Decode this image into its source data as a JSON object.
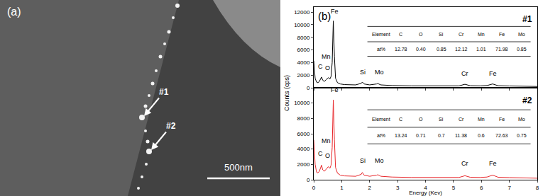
{
  "micrograph": {
    "panel_label": "(a)",
    "markers": [
      "#1",
      "#2"
    ],
    "scale_bar": "500nm"
  },
  "chart_data": [
    {
      "type": "line",
      "panel_label": "(b)",
      "tag": "#1",
      "y_label": "Counts (cps)",
      "color": "#000000",
      "tick_labels": "y",
      "xlim": [
        0,
        8
      ],
      "xticks": [
        0,
        1,
        2,
        3,
        4,
        5,
        6,
        7,
        8
      ],
      "ylim": [
        0,
        12800
      ],
      "yticks": [
        0,
        2000,
        4000,
        6000,
        8000,
        10000,
        12000
      ],
      "x": [
        0,
        0.05,
        0.1,
        0.15,
        0.2,
        0.25,
        0.28,
        0.32,
        0.38,
        0.45,
        0.52,
        0.58,
        0.62,
        0.66,
        0.7,
        0.74,
        0.78,
        0.85,
        0.95,
        1.1,
        1.3,
        1.5,
        1.7,
        1.74,
        1.8,
        2.0,
        2.25,
        2.3,
        2.4,
        2.8,
        3.5,
        4.5,
        5.2,
        5.41,
        5.6,
        5.95,
        6.2,
        6.4,
        6.6,
        7.0,
        7.5,
        8.0
      ],
      "values": [
        4300,
        1500,
        900,
        800,
        1000,
        1400,
        1700,
        1200,
        1000,
        1300,
        1600,
        1400,
        1800,
        4000,
        10600,
        5000,
        1500,
        800,
        600,
        500,
        450,
        450,
        700,
        900,
        600,
        450,
        600,
        650,
        450,
        350,
        300,
        280,
        300,
        550,
        320,
        300,
        350,
        600,
        320,
        280,
        250,
        200
      ],
      "peak_labels": [
        {
          "text": "Fe",
          "x": 0.75,
          "y": 11300
        },
        {
          "text": "Mn",
          "x": 0.45,
          "y": 4200
        },
        {
          "text": "C",
          "x": 0.25,
          "y": 2600
        },
        {
          "text": "O",
          "x": 0.5,
          "y": 2400
        },
        {
          "text": "Si",
          "x": 1.74,
          "y": 1700
        },
        {
          "text": "Mo",
          "x": 2.35,
          "y": 1700
        },
        {
          "text": "Cr",
          "x": 5.41,
          "y": 1500
        },
        {
          "text": "Fe",
          "x": 6.4,
          "y": 1500
        }
      ],
      "table": {
        "header": [
          "Element",
          "C",
          "O",
          "Si",
          "Cr",
          "Mn",
          "Fe",
          "Mo"
        ],
        "row": [
          "at%",
          "12.78",
          "0.40",
          "0.85",
          "12.12",
          "1.01",
          "71.98",
          "0.85"
        ]
      }
    },
    {
      "type": "line",
      "tag": "#2",
      "x_label": "Energy (Kev)",
      "color": "#e8262a",
      "xlim": [
        0,
        8
      ],
      "xticks": [
        0,
        1,
        2,
        3,
        4,
        5,
        6,
        7,
        8
      ],
      "ylim": [
        0,
        12000
      ],
      "yticks": [
        0,
        2000,
        4000,
        6000,
        8000,
        10000
      ],
      "x": [
        0,
        0.05,
        0.1,
        0.15,
        0.2,
        0.25,
        0.28,
        0.32,
        0.38,
        0.45,
        0.52,
        0.58,
        0.62,
        0.66,
        0.7,
        0.74,
        0.78,
        0.85,
        0.95,
        1.1,
        1.3,
        1.5,
        1.7,
        1.74,
        1.8,
        2.0,
        2.25,
        2.3,
        2.4,
        2.8,
        3.5,
        4.5,
        5.2,
        5.41,
        5.6,
        5.95,
        6.2,
        6.4,
        6.6,
        7.0,
        7.5,
        8.0
      ],
      "values": [
        5200,
        2000,
        1000,
        900,
        1100,
        1500,
        1900,
        1300,
        1100,
        1400,
        1700,
        1500,
        1900,
        4200,
        10400,
        5200,
        1600,
        850,
        600,
        500,
        450,
        450,
        700,
        950,
        600,
        450,
        600,
        650,
        450,
        350,
        300,
        280,
        300,
        520,
        320,
        300,
        350,
        600,
        320,
        280,
        250,
        200
      ],
      "peak_labels": [
        {
          "text": "Fe",
          "x": 0.75,
          "y": 11100
        },
        {
          "text": "Mn",
          "x": 0.45,
          "y": 4400
        },
        {
          "text": "C",
          "x": 0.25,
          "y": 2800
        },
        {
          "text": "O",
          "x": 0.5,
          "y": 2500
        },
        {
          "text": "Si",
          "x": 1.74,
          "y": 1800
        },
        {
          "text": "Mo",
          "x": 2.35,
          "y": 1800
        },
        {
          "text": "Cr",
          "x": 5.41,
          "y": 1500
        },
        {
          "text": "Fe",
          "x": 6.4,
          "y": 1500
        }
      ],
      "table": {
        "header": [
          "Element",
          "C",
          "O",
          "Si",
          "Cr",
          "Mn",
          "Fe",
          "Mo"
        ],
        "row": [
          "at%",
          "13.24",
          "0.71",
          "0.7",
          "11.38",
          "0.6",
          "72.63",
          "0.75"
        ]
      }
    }
  ]
}
